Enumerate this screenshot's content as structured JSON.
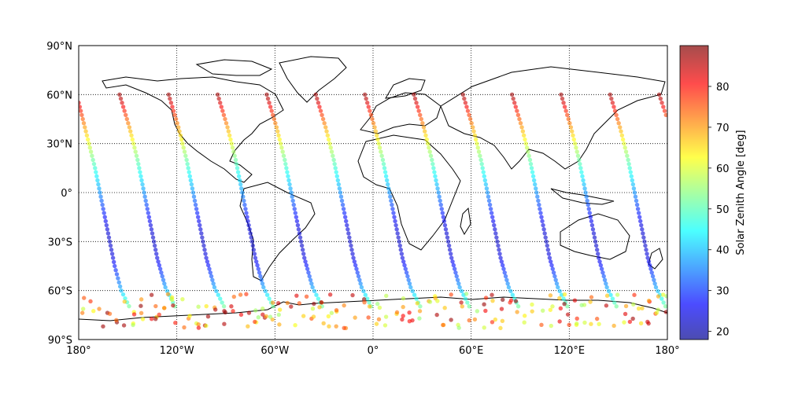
{
  "chart_data": {
    "type": "scatter",
    "projection": "equirectangular",
    "grid": true,
    "x_axis": {
      "range": [
        -180,
        180
      ],
      "tick_values": [
        -180,
        -120,
        -60,
        0,
        60,
        120,
        180
      ],
      "tick_labels": [
        "180°",
        "120°W",
        "60°W",
        "0°",
        "60°E",
        "120°E",
        "180°"
      ]
    },
    "y_axis": {
      "range": [
        -90,
        90
      ],
      "tick_values": [
        90,
        60,
        30,
        0,
        -30,
        -60,
        -90
      ],
      "tick_labels": [
        "90°N",
        "60°N",
        "30°N",
        "0°",
        "30°S",
        "60°S",
        "90°S"
      ]
    },
    "colorbar": {
      "label": "Solar Zenith Angle [deg]",
      "colormap": "jet",
      "range": [
        18,
        90
      ],
      "tick_values": [
        20,
        30,
        40,
        50,
        60,
        70,
        80
      ],
      "tick_labels": [
        "20",
        "30",
        "40",
        "50",
        "60",
        "70",
        "80"
      ],
      "position": "right"
    },
    "orbit_tracks": [
      {
        "descending_from_lon": -180,
        "points": [
          [
            -180,
            55
          ],
          [
            -175,
            35
          ],
          [
            -170,
            15
          ],
          [
            -166,
            -5
          ],
          [
            -162,
            -25
          ],
          [
            -158,
            -45
          ],
          [
            -154,
            -60
          ],
          [
            -148,
            -72
          ]
        ]
      },
      {
        "descending_from_lon": -155,
        "points": [
          [
            -155,
            60
          ],
          [
            -149,
            40
          ],
          [
            -144,
            20
          ],
          [
            -140,
            0
          ],
          [
            -136,
            -20
          ],
          [
            -132,
            -40
          ],
          [
            -127,
            -58
          ],
          [
            -120,
            -72
          ]
        ]
      },
      {
        "descending_from_lon": -125,
        "points": [
          [
            -125,
            60
          ],
          [
            -119,
            40
          ],
          [
            -114,
            20
          ],
          [
            -110,
            0
          ],
          [
            -106,
            -20
          ],
          [
            -102,
            -40
          ],
          [
            -97,
            -58
          ],
          [
            -90,
            -72
          ]
        ]
      },
      {
        "descending_from_lon": -95,
        "points": [
          [
            -95,
            60
          ],
          [
            -89,
            40
          ],
          [
            -84,
            20
          ],
          [
            -80,
            0
          ],
          [
            -76,
            -20
          ],
          [
            -72,
            -40
          ],
          [
            -67,
            -58
          ],
          [
            -60,
            -72
          ]
        ]
      },
      {
        "descending_from_lon": -65,
        "points": [
          [
            -65,
            60
          ],
          [
            -59,
            40
          ],
          [
            -54,
            20
          ],
          [
            -50,
            0
          ],
          [
            -46,
            -20
          ],
          [
            -42,
            -40
          ],
          [
            -37,
            -58
          ],
          [
            -30,
            -72
          ]
        ]
      },
      {
        "descending_from_lon": -35,
        "points": [
          [
            -35,
            60
          ],
          [
            -29,
            40
          ],
          [
            -24,
            20
          ],
          [
            -20,
            0
          ],
          [
            -16,
            -20
          ],
          [
            -12,
            -40
          ],
          [
            -7,
            -58
          ],
          [
            0,
            -72
          ]
        ]
      },
      {
        "descending_from_lon": -5,
        "points": [
          [
            -5,
            60
          ],
          [
            1,
            40
          ],
          [
            6,
            20
          ],
          [
            10,
            0
          ],
          [
            14,
            -20
          ],
          [
            18,
            -40
          ],
          [
            23,
            -58
          ],
          [
            30,
            -72
          ]
        ]
      },
      {
        "descending_from_lon": 25,
        "points": [
          [
            25,
            60
          ],
          [
            31,
            40
          ],
          [
            36,
            20
          ],
          [
            40,
            0
          ],
          [
            44,
            -20
          ],
          [
            48,
            -40
          ],
          [
            53,
            -58
          ],
          [
            60,
            -72
          ]
        ]
      },
      {
        "descending_from_lon": 55,
        "points": [
          [
            55,
            60
          ],
          [
            61,
            40
          ],
          [
            66,
            20
          ],
          [
            70,
            0
          ],
          [
            74,
            -20
          ],
          [
            78,
            -40
          ],
          [
            83,
            -58
          ],
          [
            90,
            -72
          ]
        ]
      },
      {
        "descending_from_lon": 85,
        "points": [
          [
            85,
            60
          ],
          [
            91,
            40
          ],
          [
            96,
            20
          ],
          [
            100,
            0
          ],
          [
            104,
            -20
          ],
          [
            108,
            -40
          ],
          [
            113,
            -58
          ],
          [
            120,
            -72
          ]
        ]
      },
      {
        "descending_from_lon": 115,
        "points": [
          [
            115,
            60
          ],
          [
            121,
            40
          ],
          [
            126,
            20
          ],
          [
            130,
            0
          ],
          [
            134,
            -20
          ],
          [
            138,
            -40
          ],
          [
            143,
            -58
          ],
          [
            150,
            -72
          ]
        ]
      },
      {
        "descending_from_lon": 145,
        "points": [
          [
            145,
            60
          ],
          [
            151,
            40
          ],
          [
            156,
            20
          ],
          [
            160,
            0
          ],
          [
            164,
            -20
          ],
          [
            168,
            -40
          ],
          [
            173,
            -58
          ],
          [
            180,
            -72
          ]
        ]
      },
      {
        "descending_from_lon": 175,
        "points": [
          [
            175,
            60
          ],
          [
            180,
            45
          ]
        ]
      }
    ],
    "solar_zenith_profile": {
      "latitude": [
        60,
        50,
        40,
        30,
        20,
        10,
        0,
        -10,
        -20,
        -30,
        -40,
        -50,
        -60,
        -70,
        -75
      ],
      "sza_deg": [
        88,
        79,
        70,
        61,
        52,
        44,
        37,
        30,
        25,
        23,
        25,
        31,
        40,
        53,
        66
      ]
    },
    "antarctic_points": {
      "lat_min": -83,
      "lat_max": -62,
      "lon_step": 5,
      "sza_range": [
        55,
        90
      ]
    }
  }
}
